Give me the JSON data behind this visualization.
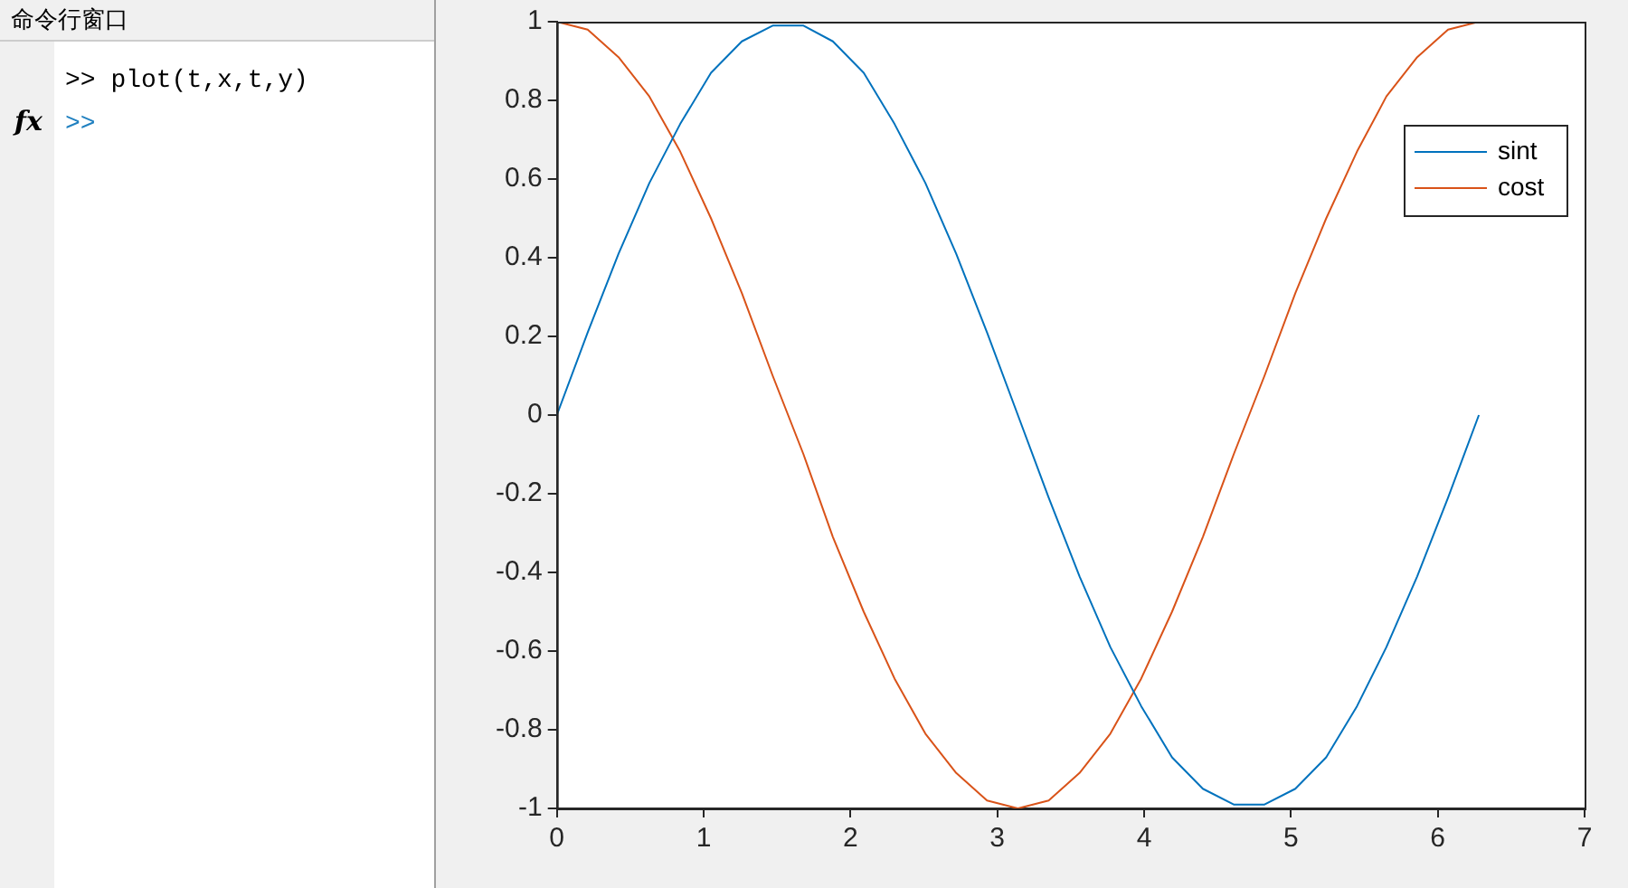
{
  "chart_data": {
    "type": "line",
    "annotations": [
      "命令行窗口",
      ">> plot(t,x,t,y)",
      ">>",
      "fx"
    ],
    "x": [
      0,
      0.21,
      0.42,
      0.63,
      0.84,
      1.05,
      1.26,
      1.47,
      1.68,
      1.88,
      2.09,
      2.3,
      2.51,
      2.72,
      2.93,
      3.14,
      3.35,
      3.56,
      3.77,
      3.98,
      4.19,
      4.4,
      4.61,
      4.82,
      5.03,
      5.24,
      5.45,
      5.65,
      5.86,
      6.07,
      6.28
    ],
    "series": [
      {
        "name": "sint",
        "color": "#0072bd",
        "values": [
          0,
          0.21,
          0.41,
          0.59,
          0.74,
          0.87,
          0.95,
          0.99,
          0.99,
          0.95,
          0.87,
          0.74,
          0.59,
          0.41,
          0.21,
          0,
          -0.21,
          -0.41,
          -0.59,
          -0.74,
          -0.87,
          -0.95,
          -0.99,
          -0.99,
          -0.95,
          -0.87,
          -0.74,
          -0.59,
          -0.41,
          -0.21,
          0
        ]
      },
      {
        "name": "cost",
        "color": "#d95319",
        "values": [
          1,
          0.98,
          0.91,
          0.81,
          0.67,
          0.5,
          0.31,
          0.1,
          -0.1,
          -0.31,
          -0.5,
          -0.67,
          -0.81,
          -0.91,
          -0.98,
          -1,
          -0.98,
          -0.91,
          -0.81,
          -0.67,
          -0.5,
          -0.31,
          -0.1,
          0.1,
          0.31,
          0.5,
          0.67,
          0.81,
          0.91,
          0.98,
          1
        ]
      }
    ],
    "xlim": [
      0,
      7
    ],
    "xticks": [
      0,
      1,
      2,
      3,
      4,
      5,
      6,
      7
    ],
    "ylim": [
      -1,
      1
    ],
    "yticks": [
      -1,
      -0.8,
      -0.6,
      -0.4,
      -0.2,
      0,
      0.2,
      0.4,
      0.6,
      0.8,
      1
    ],
    "grid": false,
    "legend": "top right",
    "marker": "none",
    "line_style": "solid"
  }
}
